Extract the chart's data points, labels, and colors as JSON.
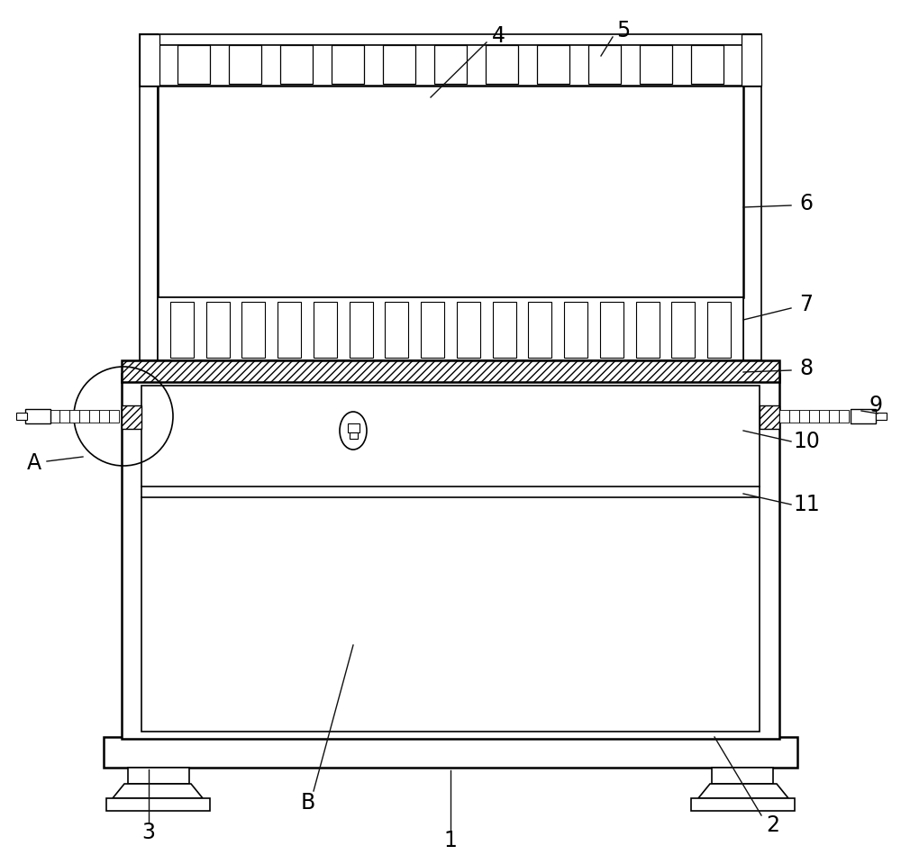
{
  "bg_color": "#ffffff",
  "fig_width": 10.0,
  "fig_height": 9.59,
  "lw": 1.8,
  "lw_thin": 1.2,
  "lw_anno": 1.0,
  "anno_fs": 17
}
